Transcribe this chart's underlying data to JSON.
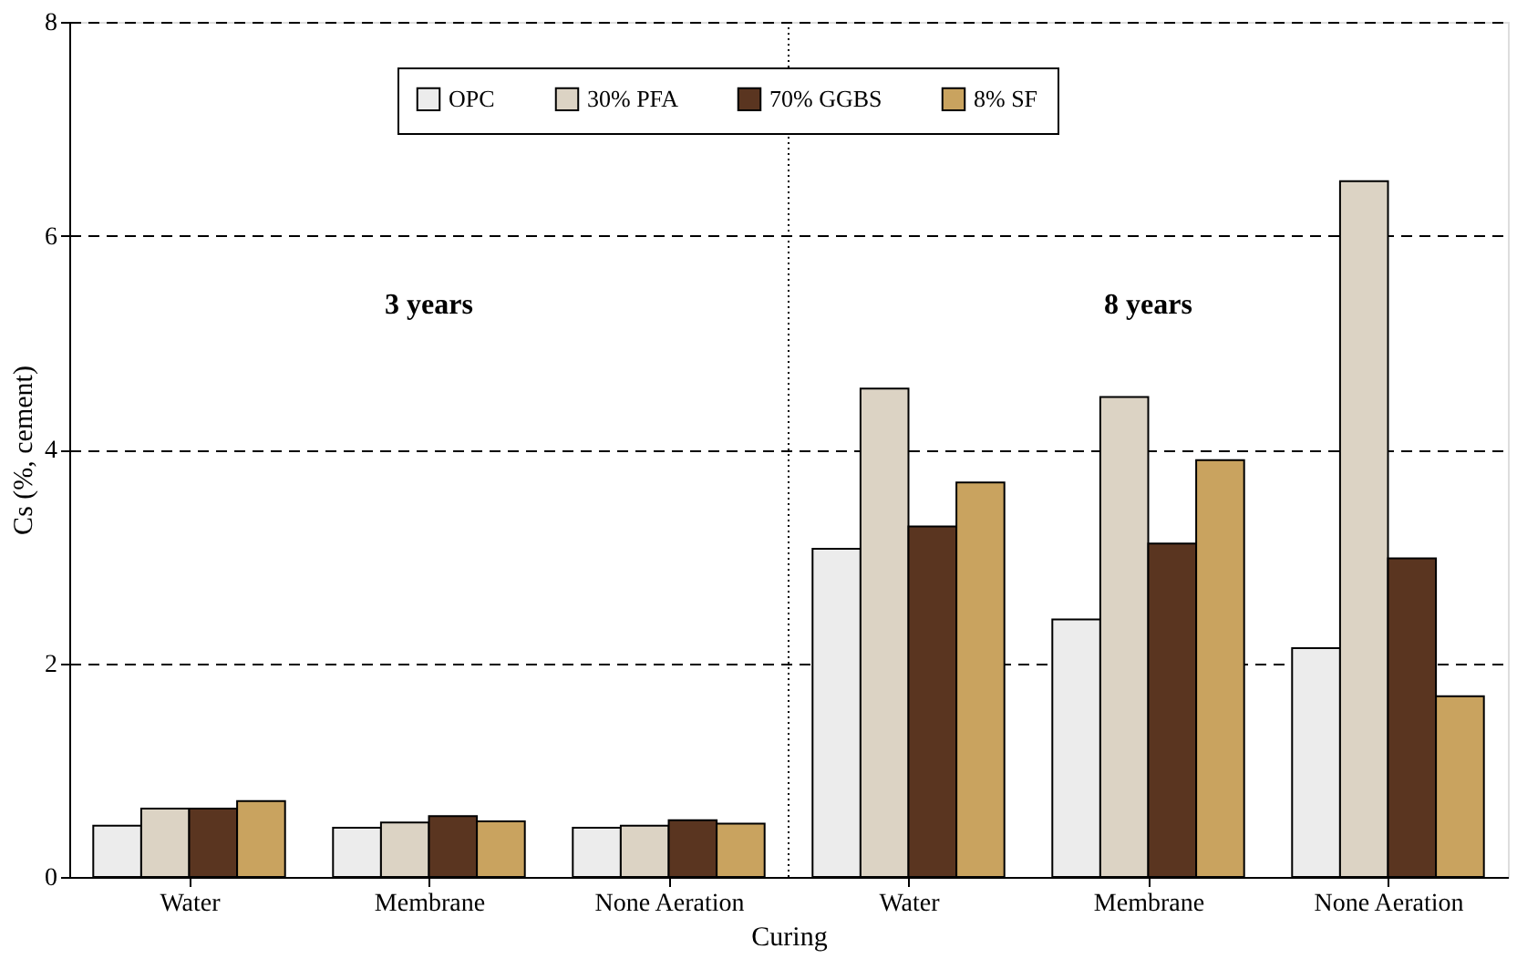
{
  "chart_data": {
    "type": "bar",
    "xlabel": "Curing",
    "ylabel": "Cs (%, cement)",
    "categories": [
      "Water",
      "Membrane",
      "None Aeration",
      "Water",
      "Membrane",
      "None Aeration"
    ],
    "series": [
      {
        "name": "OPC",
        "color": "#ececec",
        "values": [
          0.48,
          0.46,
          0.46,
          3.07,
          2.41,
          2.14
        ]
      },
      {
        "name": "30% PFA",
        "color": "#dcd3c4",
        "values": [
          0.64,
          0.51,
          0.48,
          4.57,
          4.49,
          6.51
        ]
      },
      {
        "name": "70% GGBS",
        "color": "#5a3520",
        "values": [
          0.64,
          0.57,
          0.53,
          3.28,
          3.12,
          2.98
        ]
      },
      {
        "name": "8% SF",
        "color": "#c9a35f",
        "values": [
          0.71,
          0.52,
          0.5,
          3.69,
          3.9,
          1.69
        ]
      }
    ],
    "ylim": [
      0,
      8
    ],
    "yticks": [
      0,
      2,
      4,
      6,
      8
    ],
    "grid": "y",
    "legend": "top",
    "annotations": [
      "3 years",
      "8 years"
    ]
  }
}
